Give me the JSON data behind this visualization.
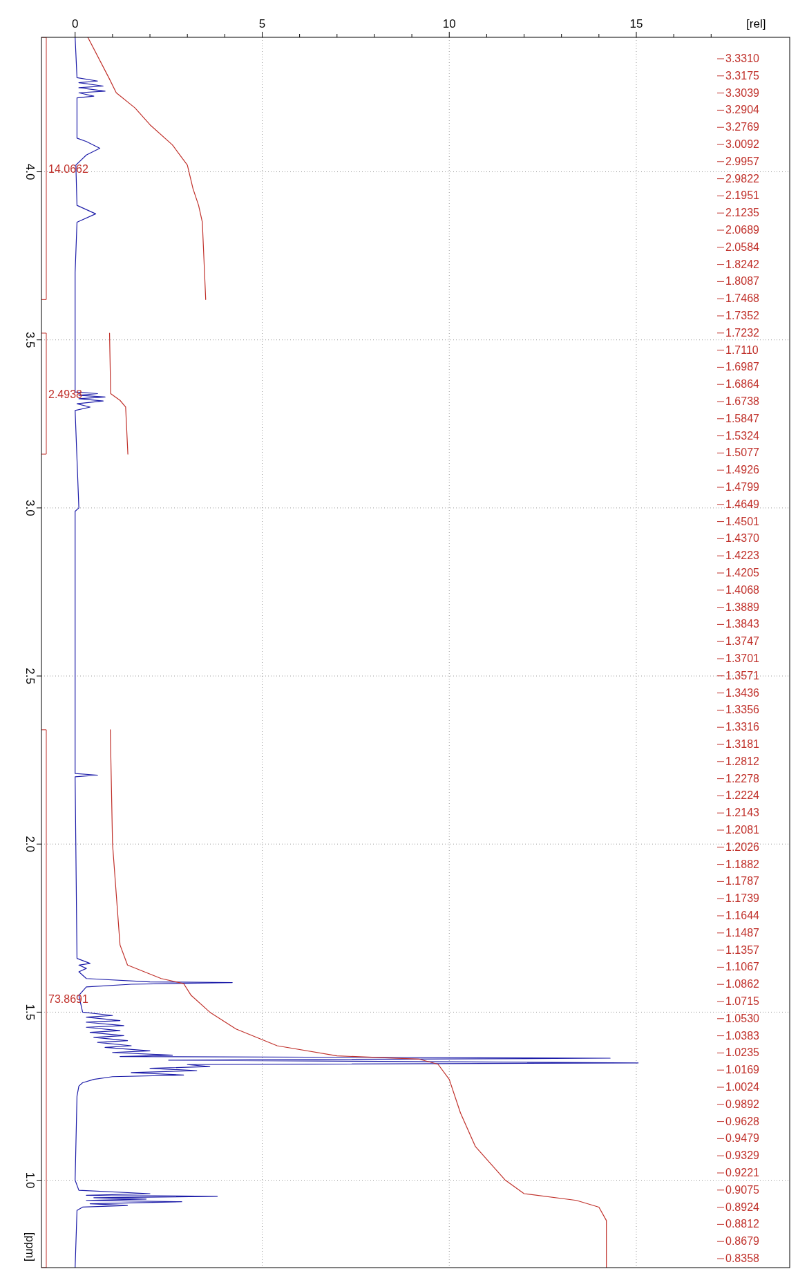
{
  "chart_data": {
    "type": "line",
    "xlabel": "[rel]",
    "ylabel": "[ppm]",
    "xlim": [
      -0.9,
      19.1
    ],
    "ylim": [
      0.74,
      4.4
    ],
    "xticks": [
      0,
      {
        "value": 1,
        "label": null
      },
      {
        "value": 2,
        "label": null
      },
      {
        "value": 3,
        "label": null
      },
      {
        "value": 4,
        "label": null
      },
      5,
      {
        "value": 6,
        "label": null
      },
      {
        "value": 7,
        "label": null
      },
      {
        "value": 8,
        "label": null
      },
      {
        "value": 9,
        "label": null
      },
      10,
      {
        "value": 11,
        "label": null
      },
      {
        "value": 12,
        "label": null
      },
      {
        "value": 13,
        "label": null
      },
      {
        "value": 14,
        "label": null
      },
      15,
      {
        "value": 16,
        "label": null
      },
      {
        "value": 17,
        "label": null
      }
    ],
    "yticks": [
      {
        "value": 1,
        "label": "1.0"
      },
      1.5,
      {
        "value": 2,
        "label": "2.0"
      },
      2.5,
      {
        "value": 3,
        "label": "3.0"
      },
      3.5,
      {
        "value": 4,
        "label": "4.0"
      }
    ],
    "grid": true,
    "series": [
      {
        "color": "#1c1ca8",
        "x": [
          0,
          0.05,
          0.6,
          0.1,
          0.75,
          0.1,
          0.8,
          0.1,
          0.5,
          0.05,
          0.05,
          0.3,
          0.66,
          0.3,
          0.02,
          0.05,
          0.55,
          0.05,
          0,
          0,
          0.6,
          0.1,
          0.8,
          0.1,
          0.75,
          0.05,
          0.4,
          0,
          0.1,
          0,
          0,
          0.6,
          0,
          0.05,
          0.4,
          0.1,
          0.3,
          0.1,
          0.3,
          2.0,
          4.2,
          1.5,
          0.3,
          0.1,
          0.2,
          1.0,
          0.3,
          1.2,
          0.3,
          1.3,
          0.3,
          1.2,
          0.4,
          1.3,
          0.5,
          1.4,
          0.6,
          1.5,
          0.8,
          2.0,
          1.0,
          2.6,
          1.2,
          14.3,
          2.5,
          15.05,
          3.0,
          3.6,
          2.0,
          3.25,
          1.5,
          2.9,
          1.0,
          0.5,
          0.2,
          0.1,
          0.05,
          0,
          0.1,
          2.0,
          0.3,
          3.8,
          0.5,
          1.9,
          0.3,
          2.85,
          0.4,
          1.4,
          0.2,
          0.05,
          0
        ],
        "values": [
          4.4,
          4.28,
          4.27,
          4.265,
          4.255,
          4.25,
          4.24,
          4.235,
          4.225,
          4.22,
          4.1,
          4.09,
          4.07,
          4.05,
          4.02,
          3.9,
          3.875,
          3.85,
          3.7,
          3.345,
          3.34,
          3.335,
          3.33,
          3.325,
          3.318,
          3.31,
          3.3,
          3.29,
          3.0,
          2.99,
          2.21,
          2.205,
          2.2,
          1.66,
          1.645,
          1.64,
          1.63,
          1.62,
          1.6,
          1.59,
          1.588,
          1.583,
          1.575,
          1.55,
          1.5,
          1.49,
          1.485,
          1.475,
          1.47,
          1.46,
          1.455,
          1.445,
          1.44,
          1.43,
          1.425,
          1.415,
          1.41,
          1.4,
          1.395,
          1.385,
          1.38,
          1.372,
          1.368,
          1.363,
          1.357,
          1.349,
          1.344,
          1.338,
          1.333,
          1.326,
          1.32,
          1.313,
          1.308,
          1.3,
          1.29,
          1.28,
          1.25,
          1.0,
          0.97,
          0.96,
          0.955,
          0.952,
          0.948,
          0.944,
          0.94,
          0.936,
          0.93,
          0.925,
          0.92,
          0.91,
          0.74
        ]
      },
      {
        "color": "#c0302a",
        "x": [
          0.34,
          0.9,
          1.1,
          1.6,
          2.0,
          2.6,
          3.0,
          3.15,
          3.3,
          3.4,
          3.49
        ],
        "values": [
          4.4,
          4.28,
          4.235,
          4.19,
          4.14,
          4.08,
          4.02,
          3.95,
          3.9,
          3.85,
          3.62
        ]
      },
      {
        "color": "#c0302a",
        "x": [
          0.92,
          0.95,
          1.2,
          1.35,
          1.41
        ],
        "values": [
          3.52,
          3.34,
          3.32,
          3.3,
          3.16
        ]
      },
      {
        "color": "#c0302a",
        "x": [
          0.94,
          1.0,
          1.2,
          1.4,
          2.3,
          2.9,
          3.1,
          3.6,
          4.3,
          5.4,
          7.0,
          9.2,
          9.7,
          10.0,
          10.3,
          10.7,
          11.5,
          12.0,
          13.4,
          14.0,
          14.2,
          14.2
        ],
        "values": [
          2.34,
          2.0,
          1.7,
          1.64,
          1.6,
          1.585,
          1.55,
          1.5,
          1.45,
          1.4,
          1.37,
          1.36,
          1.345,
          1.3,
          1.2,
          1.1,
          1.0,
          0.96,
          0.94,
          0.92,
          0.88,
          0.74
        ]
      }
    ],
    "annotations": [
      "14.0662",
      "2.4938",
      "73.8691",
      "3.3310",
      "3.3175",
      "3.3039",
      "3.2904",
      "3.2769",
      "3.0092",
      "2.9957",
      "2.9822",
      "2.1951",
      "2.1235",
      "2.0689",
      "2.0584",
      "1.8242",
      "1.8087",
      "1.7468",
      "1.7352",
      "1.7232",
      "1.7110",
      "1.6987",
      "1.6864",
      "1.6738",
      "1.5847",
      "1.5324",
      "1.5077",
      "1.4926",
      "1.4799",
      "1.4649",
      "1.4501",
      "1.4370",
      "1.4223",
      "1.4205",
      "1.4068",
      "1.3889",
      "1.3843",
      "1.3747",
      "1.3701",
      "1.3571",
      "1.3436",
      "1.3356",
      "1.3316",
      "1.3181",
      "1.2812",
      "1.2278",
      "1.2224",
      "1.2143",
      "1.2081",
      "1.2026",
      "1.1882",
      "1.1787",
      "1.1739",
      "1.1644",
      "1.1487",
      "1.1357",
      "1.1067",
      "1.0862",
      "1.0715",
      "1.0530",
      "1.0383",
      "1.0235",
      "1.0169",
      "1.0024",
      "0.9892",
      "0.9628",
      "0.9479",
      "0.9329",
      "0.9221",
      "0.9075",
      "0.8924",
      "0.8812",
      "0.8679",
      "0.8358"
    ]
  }
}
